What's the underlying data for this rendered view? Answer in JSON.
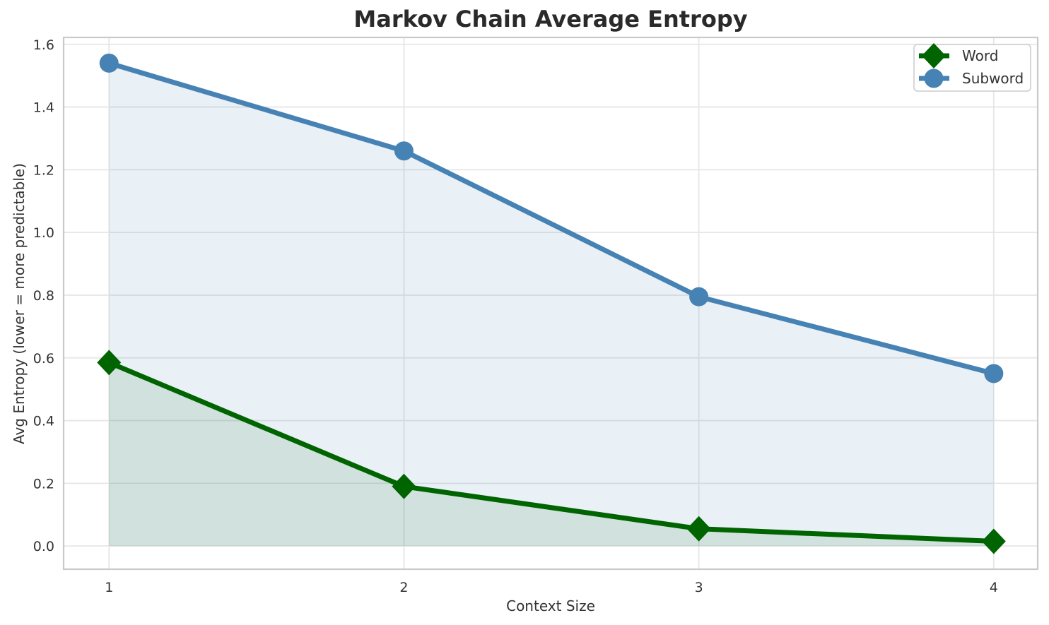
{
  "chart_data": {
    "type": "line",
    "title": "Markov Chain Average Entropy",
    "xlabel": "Context Size",
    "ylabel": "Avg Entropy (lower = more predictable)",
    "x": [
      1,
      2,
      3,
      4
    ],
    "series": [
      {
        "name": "Word",
        "color": "#006400",
        "marker": "diamond",
        "values": [
          0.585,
          0.19,
          0.055,
          0.015
        ],
        "fill_alpha": 0.1
      },
      {
        "name": "Subword",
        "color": "#4682b4",
        "marker": "circle",
        "values": [
          1.54,
          1.26,
          0.795,
          0.55
        ],
        "fill_alpha": 0.12
      }
    ],
    "fill_to_zero": true,
    "xticks": [
      "1",
      "2",
      "3",
      "4"
    ],
    "yticks": [
      "0.0",
      "0.2",
      "0.4",
      "0.6",
      "0.8",
      "1.0",
      "1.2",
      "1.4",
      "1.6"
    ],
    "xlim": [
      0.846,
      4.149
    ],
    "ylim": [
      -0.074,
      1.622
    ],
    "grid": true,
    "legend_position": "upper right",
    "colors": {
      "title_text": "#2a2a2a",
      "axis_text": "#333333",
      "grid": "#e6e6e6",
      "spine": "#c9c9c9",
      "legend_border": "#cccccc",
      "background": "#ffffff"
    }
  }
}
